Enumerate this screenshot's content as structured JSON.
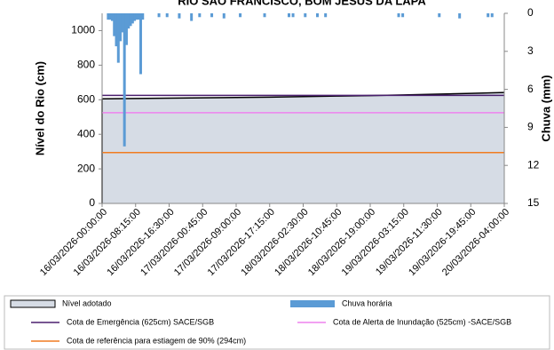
{
  "chart_data": {
    "type": "combo",
    "title": "RIO SÃO FRANCISCO, BOM JESUS DA LAPA",
    "y_label": "Nível do Rio (cm)",
    "y2_label": "Chuva (mm)",
    "xlim": [
      0,
      99
    ],
    "xticks": [
      {
        "value": 0,
        "label": "16/03/2026-00:00:00"
      },
      {
        "value": 8.25,
        "label": "16/03/2026-08:15:00"
      },
      {
        "value": 16.5,
        "label": "16/03/2026-16:30:00"
      },
      {
        "value": 24.75,
        "label": "17/03/2026-00:45:00"
      },
      {
        "value": 33,
        "label": "17/03/2026-09:00:00"
      },
      {
        "value": 41.25,
        "label": "17/03/2026-17:15:00"
      },
      {
        "value": 49.5,
        "label": "18/03/2026-02:30:00"
      },
      {
        "value": 57.75,
        "label": "18/03/2026-10:45:00"
      },
      {
        "value": 66,
        "label": "18/03/2026-19:00:00"
      },
      {
        "value": 74.25,
        "label": "19/03/2026-03:15:00"
      },
      {
        "value": 82.5,
        "label": "19/03/2026-11:30:00"
      },
      {
        "value": 90.75,
        "label": "19/03/2026-19:45:00"
      },
      {
        "value": 99,
        "label": "20/03/2026-04:00:00"
      }
    ],
    "ylim": [
      0,
      1100
    ],
    "yticks": [
      0,
      200,
      400,
      600,
      800,
      1000
    ],
    "y2lim": [
      0,
      15
    ],
    "y2ticks": [
      0,
      3,
      6,
      9,
      12,
      15
    ],
    "y2_inverted": true,
    "series": [
      {
        "name": "Nível adotado",
        "type": "area",
        "color": "#d6dce5",
        "line_color": "#000000",
        "x": [
          0,
          8.25,
          16.5,
          24.75,
          33,
          41.25,
          49.5,
          57.75,
          66,
          74.25,
          82.5,
          90.75,
          99
        ],
        "values": [
          605,
          607,
          609,
          611,
          613,
          615,
          618,
          621,
          624,
          628,
          632,
          637,
          642
        ]
      },
      {
        "name": "Chuva horária",
        "type": "bar",
        "axis": "y2",
        "color": "#5b9bd5",
        "x": [
          1.5,
          2,
          2.5,
          3,
          3.5,
          4,
          4.5,
          5,
          5.5,
          6,
          6.5,
          7,
          7.5,
          8,
          8.5,
          9,
          9.5,
          10,
          14,
          16,
          19,
          22,
          24,
          27,
          30,
          34,
          40,
          46,
          47,
          50,
          53,
          55,
          73,
          74,
          83,
          88,
          95,
          96
        ],
        "values": [
          0.5,
          0.5,
          0.6,
          1.8,
          2.6,
          3.9,
          2.2,
          1.5,
          10.5,
          2.5,
          1.2,
          1.0,
          0.8,
          0.6,
          0.5,
          0.5,
          4.8,
          0.5,
          0.3,
          0.3,
          0.4,
          0.6,
          0.3,
          0.3,
          0.4,
          0.3,
          0.3,
          0.3,
          0.3,
          0.3,
          0.3,
          0.3,
          0.3,
          0.3,
          0.3,
          0.4,
          0.3,
          0.3
        ]
      },
      {
        "name": "Cota de Emergência   (625cm) SACE/SGB",
        "type": "hline",
        "color": "#4b1f6f",
        "values": [
          625
        ]
      },
      {
        "name": "Cota de Alerta  de Inundação (525cm) -SACE/SGB",
        "type": "hline",
        "color": "#ee82ee",
        "values": [
          525
        ]
      },
      {
        "name": "Cota de referência para  estiagem de 90% (294cm)",
        "type": "hline",
        "color": "#f07c20",
        "values": [
          294
        ]
      }
    ]
  }
}
